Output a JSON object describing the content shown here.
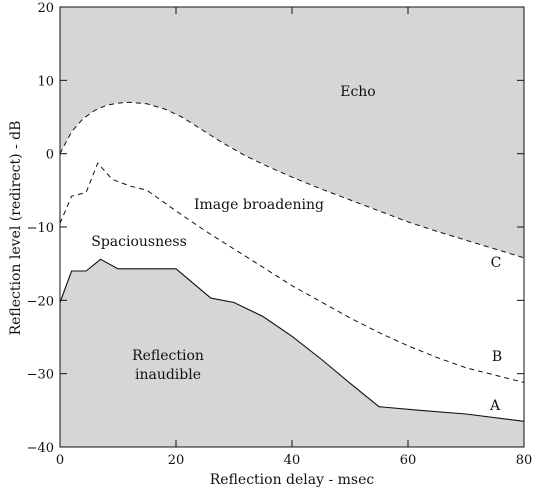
{
  "chart_data": {
    "type": "line",
    "title": "",
    "xlabel": "Reflection delay - msec",
    "ylabel": "Reflection level (redirect) - dB",
    "xlim": [
      0,
      80
    ],
    "ylim": [
      -40,
      20
    ],
    "x_ticks": [
      0,
      20,
      40,
      60,
      80
    ],
    "y_ticks": [
      20,
      10,
      0,
      -10,
      -20,
      -30,
      -40
    ],
    "x_tick_labels": [
      "0",
      "20",
      "40",
      "60",
      "80"
    ],
    "y_tick_labels": [
      "20",
      "10",
      "0",
      "−10",
      "−20",
      "−30",
      "−40"
    ],
    "grid": false,
    "series": [
      {
        "name": "A",
        "style": "solid",
        "points": [
          [
            0,
            -20.3
          ],
          [
            2,
            -16
          ],
          [
            4.5,
            -16
          ],
          [
            7,
            -14.4
          ],
          [
            10,
            -15.7
          ],
          [
            13,
            -15.7
          ],
          [
            16,
            -15.7
          ],
          [
            20,
            -15.7
          ],
          [
            26,
            -19.7
          ],
          [
            30,
            -20.3
          ],
          [
            35,
            -22.2
          ],
          [
            40,
            -24.9
          ],
          [
            45,
            -28
          ],
          [
            50,
            -31.3
          ],
          [
            55,
            -34.5
          ],
          [
            62,
            -35
          ],
          [
            70,
            -35.5
          ],
          [
            80,
            -36.5
          ]
        ]
      },
      {
        "name": "B",
        "style": "dashed",
        "points": [
          [
            0,
            -9.5
          ],
          [
            2,
            -5.8
          ],
          [
            4.5,
            -5.3
          ],
          [
            6.5,
            -1.3
          ],
          [
            9,
            -3.5
          ],
          [
            12,
            -4.4
          ],
          [
            15,
            -5
          ],
          [
            20,
            -7.8
          ],
          [
            25,
            -10.5
          ],
          [
            30,
            -13
          ],
          [
            35,
            -15.5
          ],
          [
            40,
            -18
          ],
          [
            45,
            -20.2
          ],
          [
            50,
            -22.4
          ],
          [
            55,
            -24.4
          ],
          [
            60,
            -26.2
          ],
          [
            65,
            -27.8
          ],
          [
            70,
            -29.2
          ],
          [
            75,
            -30.2
          ],
          [
            80,
            -31.2
          ]
        ]
      },
      {
        "name": "C",
        "style": "dashed",
        "points": [
          [
            0,
            0
          ],
          [
            2,
            3
          ],
          [
            4,
            4.8
          ],
          [
            6,
            5.9
          ],
          [
            8,
            6.6
          ],
          [
            10,
            6.9
          ],
          [
            12,
            7
          ],
          [
            15,
            6.8
          ],
          [
            18,
            6.1
          ],
          [
            21,
            5
          ],
          [
            24,
            3.5
          ],
          [
            28,
            1.5
          ],
          [
            32,
            -0.3
          ],
          [
            36,
            -1.8
          ],
          [
            40,
            -3.2
          ],
          [
            45,
            -4.8
          ],
          [
            50,
            -6.3
          ],
          [
            55,
            -7.8
          ],
          [
            60,
            -9.3
          ],
          [
            65,
            -10.6
          ],
          [
            70,
            -11.8
          ],
          [
            75,
            -13
          ],
          [
            80,
            -14.2
          ]
        ]
      }
    ],
    "regions": {
      "echo": "Echo",
      "image_broadening": "Image broadening",
      "spaciousness": "Spaciousness",
      "inaudible_line1": "Reflection",
      "inaudible_line2": "inaudible"
    },
    "shading_color": "#d6d6d6"
  }
}
